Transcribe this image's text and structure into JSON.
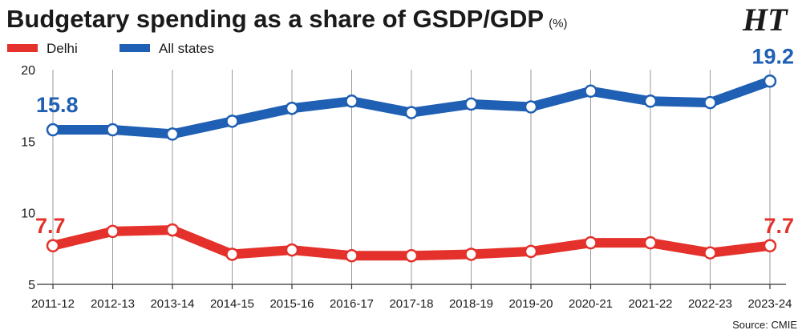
{
  "header": {
    "title": "Budgetary spending as a share of GSDP/GDP",
    "unit": "(%)",
    "logo": "HT"
  },
  "source": "Source: CMIE",
  "colors": {
    "delhi": "#e4312b",
    "all_states": "#1f5fb4",
    "grid": "#9a9a9a"
  },
  "chart_data": {
    "type": "line",
    "title": "Budgetary spending as a share of GSDP/GDP",
    "unit": "(%)",
    "xlabel": "",
    "ylabel": "",
    "categories": [
      "2011-12",
      "2012-13",
      "2013-14",
      "2014-15",
      "2015-16",
      "2016-17",
      "2017-18",
      "2018-19",
      "2019-20",
      "2020-21",
      "2021-22",
      "2022-23",
      "2023-24"
    ],
    "ylim": [
      5,
      20
    ],
    "yticks": [
      5,
      10,
      15,
      20
    ],
    "grid": "vertical",
    "legend": "top-left",
    "series": [
      {
        "name": "Delhi",
        "color": "#e4312b",
        "values": [
          7.7,
          8.7,
          8.8,
          7.1,
          7.4,
          7.0,
          7.0,
          7.1,
          7.3,
          7.9,
          7.9,
          7.2,
          7.7
        ],
        "labels": {
          "first": "7.7",
          "last": "7.7"
        }
      },
      {
        "name": "All states",
        "color": "#1f5fb4",
        "values": [
          15.8,
          15.8,
          15.5,
          16.4,
          17.3,
          17.8,
          17.0,
          17.6,
          17.4,
          18.5,
          17.8,
          17.7,
          19.2
        ],
        "labels": {
          "first": "15.8",
          "last": "19.2"
        }
      }
    ]
  }
}
